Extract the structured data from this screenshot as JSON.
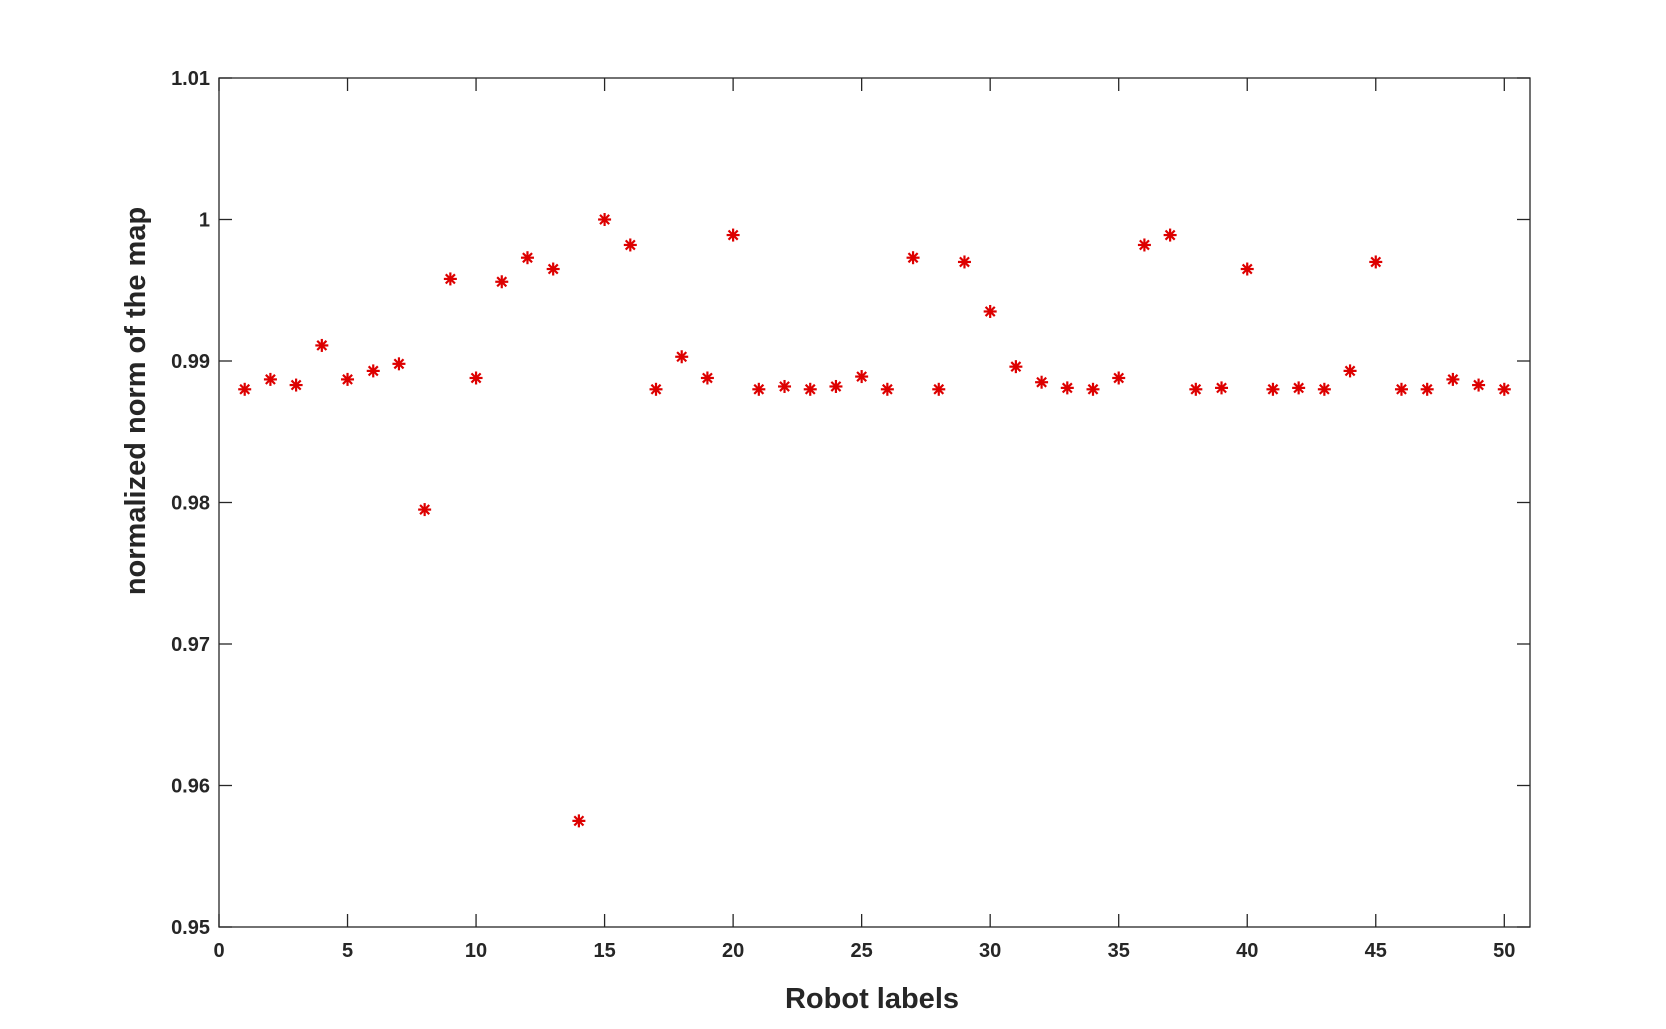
{
  "chart_data": {
    "type": "scatter",
    "title": "",
    "xlabel": "Robot labels",
    "ylabel": "normalized norm of the map",
    "xlim": [
      0,
      51
    ],
    "ylim": [
      0.95,
      1.01
    ],
    "xticks": [
      0,
      5,
      10,
      15,
      20,
      25,
      30,
      35,
      40,
      45,
      50
    ],
    "yticks": [
      0.95,
      0.96,
      0.97,
      0.98,
      0.99,
      1.0,
      1.01
    ],
    "ytick_labels": [
      "0.95",
      "0.96",
      "0.97",
      "0.98",
      "0.99",
      "1",
      "1.01"
    ],
    "grid": false,
    "box": true,
    "marker": "asterisk",
    "marker_color": "#dd0000",
    "series": [
      {
        "x": [
          1,
          2,
          3,
          4,
          5,
          6,
          7,
          8,
          9,
          10,
          11,
          12,
          13,
          14,
          15,
          16,
          17,
          18,
          19,
          20,
          21,
          22,
          23,
          24,
          25,
          26,
          27,
          28,
          29,
          30,
          31,
          32,
          33,
          34,
          35,
          36,
          37,
          38,
          39,
          40,
          41,
          42,
          43,
          44,
          45,
          46,
          47,
          48,
          49,
          50
        ],
        "y": [
          0.988,
          0.9887,
          0.9883,
          0.9911,
          0.9887,
          0.9893,
          0.9898,
          0.9795,
          0.9958,
          0.9888,
          0.9956,
          0.9973,
          0.9965,
          0.9575,
          1.0,
          0.9982,
          0.988,
          0.9903,
          0.9888,
          0.9989,
          0.988,
          0.9882,
          0.988,
          0.9882,
          0.9889,
          0.988,
          0.9973,
          0.988,
          0.997,
          0.9935,
          0.9896,
          0.9885,
          0.9881,
          0.988,
          0.9888,
          0.9982,
          0.9989,
          0.988,
          0.9881,
          0.9965,
          0.988,
          0.9881,
          0.988,
          0.9893,
          0.997,
          0.988,
          0.988,
          0.9887,
          0.9883,
          0.988
        ]
      }
    ]
  }
}
